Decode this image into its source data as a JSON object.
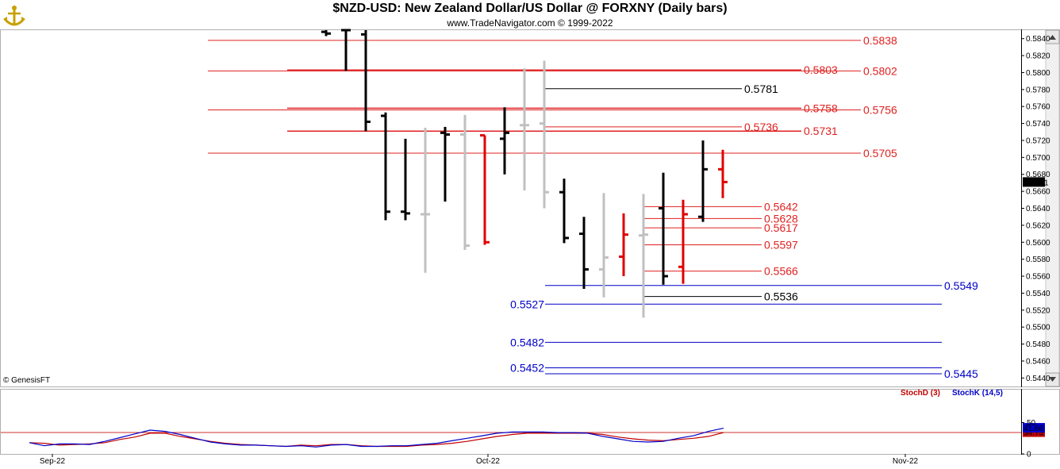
{
  "header": {
    "title": "$NZD-USD:  New Zealand Dollar/US Dollar @ FORXNY  (Daily bars)",
    "subtitle": "www.TradeNavigator.com © 1999-2022",
    "copyright": "© GenesisFT"
  },
  "chart_data": [
    {
      "type": "ohlc",
      "ylim": [
        0.543,
        0.585
      ],
      "y_ticks": [
        "0.5840",
        "0.5820",
        "0.5800",
        "0.5780",
        "0.5760",
        "0.5740",
        "0.5720",
        "0.5700",
        "0.5680",
        "0.5660",
        "0.5640",
        "0.5620",
        "0.5600",
        "0.5580",
        "0.5560",
        "0.5540",
        "0.5520",
        "0.5500",
        "0.5480",
        "0.5460",
        "0.5440"
      ],
      "last_price": "0.5671",
      "bars": [
        {
          "i": 0,
          "o": 0.5848,
          "h": 0.585,
          "l": 0.5843,
          "c": 0.5846,
          "color": "black"
        },
        {
          "i": 1,
          "o": 0.585,
          "h": 0.585,
          "l": 0.5802,
          "c": 0.585,
          "color": "black"
        },
        {
          "i": 2,
          "o": 0.5845,
          "h": 0.585,
          "l": 0.5731,
          "c": 0.5742,
          "color": "black"
        },
        {
          "i": 3,
          "o": 0.5749,
          "h": 0.5753,
          "l": 0.5626,
          "c": 0.5636,
          "color": "black"
        },
        {
          "i": 4,
          "o": 0.5636,
          "h": 0.5722,
          "l": 0.5626,
          "c": 0.5634,
          "color": "black"
        },
        {
          "i": 5,
          "o": 0.5633,
          "h": 0.5735,
          "l": 0.5564,
          "c": 0.5633,
          "color": "gray"
        },
        {
          "i": 6,
          "o": 0.5729,
          "h": 0.5736,
          "l": 0.5648,
          "c": 0.5727,
          "color": "black"
        },
        {
          "i": 7,
          "o": 0.5727,
          "h": 0.575,
          "l": 0.5591,
          "c": 0.5596,
          "color": "gray"
        },
        {
          "i": 8,
          "o": 0.5726,
          "h": 0.5726,
          "l": 0.5597,
          "c": 0.56,
          "color": "red"
        },
        {
          "i": 9,
          "o": 0.5722,
          "h": 0.5759,
          "l": 0.568,
          "c": 0.5729,
          "color": "black"
        },
        {
          "i": 10,
          "o": 0.5738,
          "h": 0.5805,
          "l": 0.5661,
          "c": 0.5738,
          "color": "gray"
        },
        {
          "i": 11,
          "o": 0.574,
          "h": 0.5814,
          "l": 0.564,
          "c": 0.5659,
          "color": "gray"
        },
        {
          "i": 12,
          "o": 0.5659,
          "h": 0.5675,
          "l": 0.5599,
          "c": 0.5605,
          "color": "black"
        },
        {
          "i": 13,
          "o": 0.561,
          "h": 0.563,
          "l": 0.5545,
          "c": 0.5568,
          "color": "black"
        },
        {
          "i": 14,
          "o": 0.5568,
          "h": 0.5658,
          "l": 0.5535,
          "c": 0.5582,
          "color": "gray"
        },
        {
          "i": 15,
          "o": 0.5583,
          "h": 0.5634,
          "l": 0.556,
          "c": 0.5609,
          "color": "red"
        },
        {
          "i": 16,
          "o": 0.5608,
          "h": 0.5657,
          "l": 0.5511,
          "c": 0.5609,
          "color": "gray"
        },
        {
          "i": 17,
          "o": 0.564,
          "h": 0.5682,
          "l": 0.555,
          "c": 0.556,
          "color": "black"
        },
        {
          "i": 18,
          "o": 0.5571,
          "h": 0.565,
          "l": 0.5551,
          "c": 0.5633,
          "color": "red"
        },
        {
          "i": 19,
          "o": 0.563,
          "h": 0.572,
          "l": 0.5624,
          "c": 0.5686,
          "color": "black"
        },
        {
          "i": 20,
          "o": 0.5686,
          "h": 0.5709,
          "l": 0.5652,
          "c": 0.5671,
          "color": "red"
        }
      ],
      "levels": [
        {
          "label": "0.5838",
          "value": 0.5838,
          "color": "#e02020",
          "from": 0,
          "to": 26
        },
        {
          "label": "0.5802",
          "value": 0.5802,
          "color": "#e02020",
          "from": 0,
          "to": 26
        },
        {
          "label": "0.5803",
          "value": 0.5803,
          "color": "#e02020",
          "from": 3,
          "to": 23
        },
        {
          "label": "0.5756",
          "value": 0.5756,
          "color": "#e02020",
          "from": 0,
          "to": 26
        },
        {
          "label": "0.5758",
          "value": 0.5758,
          "color": "#e02020",
          "from": 3,
          "to": 23
        },
        {
          "label": "0.5781",
          "value": 0.5781,
          "color": "#000000",
          "from": 13,
          "to": 21
        },
        {
          "label": "0.5736",
          "value": 0.5736,
          "color": "#e02020",
          "from": 13,
          "to": 21
        },
        {
          "label": "0.5731",
          "value": 0.5731,
          "color": "#e02020",
          "from": 3,
          "to": 23
        },
        {
          "label": "0.5705",
          "value": 0.5705,
          "color": "#e02020",
          "from": 0,
          "to": 26
        },
        {
          "label": "0.5642",
          "value": 0.5642,
          "color": "#e02020",
          "from": 16,
          "to": 22
        },
        {
          "label": "0.5628",
          "value": 0.5628,
          "color": "#e02020",
          "from": 16,
          "to": 22
        },
        {
          "label": "0.5617",
          "value": 0.5617,
          "color": "#e02020",
          "from": 16,
          "to": 22
        },
        {
          "label": "0.5597",
          "value": 0.5597,
          "color": "#e02020",
          "from": 16,
          "to": 22
        },
        {
          "label": "0.5566",
          "value": 0.5566,
          "color": "#e02020",
          "from": 16,
          "to": 22
        },
        {
          "label": "0.5549",
          "value": 0.5549,
          "color": "#0000c8",
          "from": 13,
          "to": 30
        },
        {
          "label": "0.5536",
          "value": 0.5536,
          "color": "#000000",
          "from": 16,
          "to": 22
        },
        {
          "label": "0.5527",
          "value": 0.5527,
          "color": "#0000c8",
          "from": 13,
          "to": 30
        },
        {
          "label": "0.5482",
          "value": 0.5482,
          "color": "#0000c8",
          "from": 13,
          "to": 30
        },
        {
          "label": "0.5452",
          "value": 0.5452,
          "color": "#0000c8",
          "from": 13,
          "to": 30
        },
        {
          "label": "0.5445",
          "value": 0.5445,
          "color": "#0000c8",
          "from": 13,
          "to": 30
        }
      ]
    },
    {
      "type": "line",
      "ylim": [
        0,
        100
      ],
      "y_ticks": [
        "50",
        "0"
      ],
      "x_labels": [
        "Sep-22",
        "Oct-22",
        "Nov-22"
      ],
      "series": [
        {
          "name": "StochD (3)",
          "color": "#c00000",
          "last": "34.73",
          "values": [
            18,
            17,
            14,
            15,
            16,
            18,
            23,
            27,
            33,
            33,
            28,
            24,
            20,
            17,
            15,
            14,
            13,
            12,
            14,
            13,
            15,
            15,
            13,
            12,
            12,
            12,
            14,
            15,
            17,
            20,
            24,
            28,
            31,
            33,
            33,
            33,
            33,
            33,
            31,
            27,
            24,
            22,
            21,
            23,
            25,
            28,
            34
          ]
        },
        {
          "name": "StochK (14,5)",
          "color": "#0000c8",
          "last": "41.66",
          "values": [
            18,
            13,
            16,
            16,
            15,
            20,
            26,
            32,
            38,
            36,
            31,
            25,
            19,
            16,
            14,
            14,
            13,
            12,
            13,
            11,
            14,
            15,
            12,
            12,
            13,
            13,
            15,
            17,
            21,
            25,
            29,
            33,
            35,
            35,
            35,
            34,
            34,
            33,
            28,
            24,
            20,
            19,
            20,
            25,
            29,
            36,
            41
          ]
        }
      ]
    }
  ]
}
